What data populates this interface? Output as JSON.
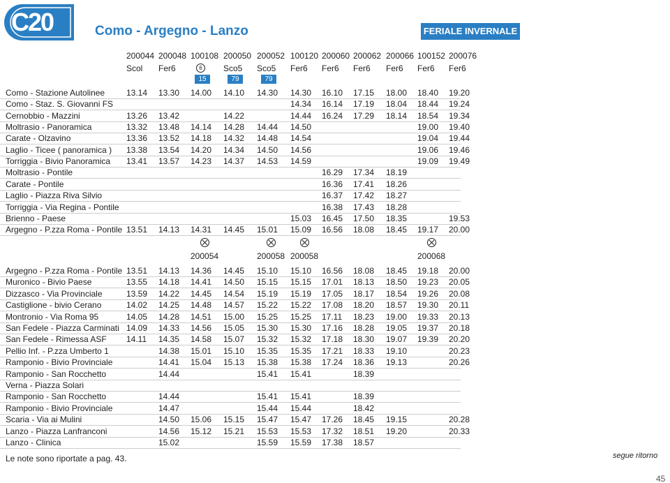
{
  "header": {
    "logo": "C20",
    "title": "Como - Argegno - Lanzo",
    "badge": "FERIALE INVERNALE"
  },
  "section1": {
    "codes": [
      "200044",
      "200048",
      "100108",
      "200050",
      "200052",
      "100120",
      "200060",
      "200062",
      "200066",
      "100152",
      "200076"
    ],
    "types": [
      "Scol",
      "Fer6",
      "6",
      "Sco5",
      "Sco5",
      "Fer6",
      "Fer6",
      "Fer6",
      "Fer6",
      "Fer6",
      "Fer6"
    ],
    "notes": [
      null,
      null,
      "15",
      "79",
      "79",
      null,
      null,
      null,
      null,
      null,
      null
    ],
    "rows": [
      {
        "stop": "Como - Stazione Autolinee",
        "times": [
          "13.14",
          "13.30",
          "14.00",
          "14.10",
          "14.30",
          "14.30",
          "16.10",
          "17.15",
          "18.00",
          "18.40",
          "19.20"
        ]
      },
      {
        "stop": "Como - Staz. S. Giovanni FS",
        "times": [
          null,
          null,
          null,
          null,
          null,
          "14.34",
          "16.14",
          "17.19",
          "18.04",
          "18.44",
          "19.24"
        ]
      },
      {
        "stop": "Cernobbio - Mazzini",
        "times": [
          "13.26",
          "13.42",
          null,
          "14.22",
          null,
          "14.44",
          "16.24",
          "17.29",
          "18.14",
          "18.54",
          "19.34"
        ]
      },
      {
        "stop": "Moltrasio - Panoramica",
        "times": [
          "13.32",
          "13.48",
          "14.14",
          "14.28",
          "14.44",
          "14.50",
          null,
          null,
          null,
          "19.00",
          "19.40"
        ]
      },
      {
        "stop": "Carate - Olzavino",
        "times": [
          "13.36",
          "13.52",
          "14.18",
          "14.32",
          "14.48",
          "14.54",
          null,
          null,
          null,
          "19.04",
          "19.44"
        ]
      },
      {
        "stop": "Laglio - Ticee ( panoramica )",
        "times": [
          "13.38",
          "13.54",
          "14.20",
          "14.34",
          "14.50",
          "14.56",
          null,
          null,
          null,
          "19.06",
          "19.46"
        ]
      },
      {
        "stop": "Torriggia - Bivio Panoramica",
        "times": [
          "13.41",
          "13.57",
          "14.23",
          "14.37",
          "14.53",
          "14.59",
          null,
          null,
          null,
          "19.09",
          "19.49"
        ]
      },
      {
        "stop": "Moltrasio - Pontile",
        "times": [
          null,
          null,
          null,
          null,
          null,
          null,
          "16.29",
          "17.34",
          "18.19",
          null,
          null
        ]
      },
      {
        "stop": "Carate - Pontile",
        "times": [
          null,
          null,
          null,
          null,
          null,
          null,
          "16.36",
          "17.41",
          "18.26",
          null,
          null
        ]
      },
      {
        "stop": "Laglio - Piazza Riva Silvio",
        "times": [
          null,
          null,
          null,
          null,
          null,
          null,
          "16.37",
          "17.42",
          "18.27",
          null,
          null
        ]
      },
      {
        "stop": "Torriggia - Via Regina - Pontile",
        "times": [
          null,
          null,
          null,
          null,
          null,
          null,
          "16.38",
          "17.43",
          "18.28",
          null,
          null
        ]
      },
      {
        "stop": "Brienno - Paese",
        "times": [
          null,
          null,
          null,
          null,
          null,
          "15.03",
          "16.45",
          "17.50",
          "18.35",
          null,
          "19.53"
        ]
      },
      {
        "stop": "Argegno - P.zza Roma - Pontile",
        "times": [
          "13.51",
          "14.13",
          "14.31",
          "14.45",
          "15.01",
          "15.09",
          "16.56",
          "18.08",
          "18.45",
          "19.17",
          "20.00"
        ]
      }
    ]
  },
  "section2": {
    "codes": [
      null,
      null,
      "200054",
      null,
      "200058",
      "200058",
      null,
      null,
      null,
      "200068",
      null
    ],
    "rows": [
      {
        "stop": "Argegno - P.zza Roma - Pontile",
        "times": [
          "13.51",
          "14.13",
          "14.36",
          "14.45",
          "15.10",
          "15.10",
          "16.56",
          "18.08",
          "18.45",
          "19.18",
          "20.00"
        ]
      },
      {
        "stop": "Muronico - Bivio Paese",
        "times": [
          "13.55",
          "14.18",
          "14.41",
          "14.50",
          "15.15",
          "15.15",
          "17.01",
          "18.13",
          "18.50",
          "19.23",
          "20.05"
        ]
      },
      {
        "stop": "Dizzasco - Via Provinciale",
        "times": [
          "13.59",
          "14.22",
          "14.45",
          "14.54",
          "15.19",
          "15.19",
          "17.05",
          "18.17",
          "18.54",
          "19.26",
          "20.08"
        ]
      },
      {
        "stop": "Castiglione - bivio Cerano",
        "times": [
          "14.02",
          "14.25",
          "14.48",
          "14.57",
          "15.22",
          "15.22",
          "17.08",
          "18.20",
          "18.57",
          "19.30",
          "20.11"
        ]
      },
      {
        "stop": "Montronio - Via Roma 95",
        "times": [
          "14.05",
          "14.28",
          "14.51",
          "15.00",
          "15.25",
          "15.25",
          "17.11",
          "18.23",
          "19.00",
          "19.33",
          "20.13"
        ]
      },
      {
        "stop": "San Fedele - Piazza Carminati",
        "times": [
          "14.09",
          "14.33",
          "14.56",
          "15.05",
          "15.30",
          "15.30",
          "17.16",
          "18.28",
          "19.05",
          "19.37",
          "20.18"
        ]
      },
      {
        "stop": "San Fedele - Rimessa ASF",
        "times": [
          "14.11",
          "14.35",
          "14.58",
          "15.07",
          "15.32",
          "15.32",
          "17.18",
          "18.30",
          "19.07",
          "19.39",
          "20.20"
        ]
      },
      {
        "stop": "Pellio Inf. - P.zza Umberto 1",
        "times": [
          null,
          "14.38",
          "15.01",
          "15.10",
          "15.35",
          "15.35",
          "17.21",
          "18.33",
          "19.10",
          null,
          "20.23"
        ]
      },
      {
        "stop": "Ramponio - Bivio Provinciale",
        "times": [
          null,
          "14.41",
          "15.04",
          "15.13",
          "15.38",
          "15.38",
          "17.24",
          "18.36",
          "19.13",
          null,
          "20.26"
        ]
      },
      {
        "stop": "Ramponio - San Rocchetto",
        "times": [
          null,
          "14.44",
          null,
          null,
          "15.41",
          "15.41",
          null,
          "18.39",
          null,
          null,
          null
        ]
      },
      {
        "stop": "Verna - Piazza Solari",
        "times": [
          null,
          null,
          null,
          null,
          null,
          null,
          null,
          null,
          null,
          null,
          null
        ]
      },
      {
        "stop": "Ramponio - San Rocchetto",
        "times": [
          null,
          "14.44",
          null,
          null,
          "15.41",
          "15.41",
          null,
          "18.39",
          null,
          null,
          null
        ]
      },
      {
        "stop": "Ramponio - Bivio Provinciale",
        "times": [
          null,
          "14.47",
          null,
          null,
          "15.44",
          "15.44",
          null,
          "18.42",
          null,
          null,
          null
        ]
      },
      {
        "stop": "Scaria - Via ai Mulini",
        "times": [
          null,
          "14.50",
          "15.06",
          "15.15",
          "15.47",
          "15.47",
          "17.26",
          "18.45",
          "19.15",
          null,
          "20.28"
        ]
      },
      {
        "stop": "Lanzo - Piazza Lanfranconi",
        "times": [
          null,
          "14.56",
          "15.12",
          "15.21",
          "15.53",
          "15.53",
          "17.32",
          "18.51",
          "19.20",
          null,
          "20.33"
        ]
      },
      {
        "stop": "Lanzo - Clinica",
        "times": [
          null,
          "15.02",
          null,
          null,
          "15.59",
          "15.59",
          "17.38",
          "18.57",
          null,
          null,
          null
        ]
      }
    ]
  },
  "footer": {
    "note": "Le note sono riportate a pag. 43.",
    "continue": "segue ritorno",
    "page": "45"
  }
}
